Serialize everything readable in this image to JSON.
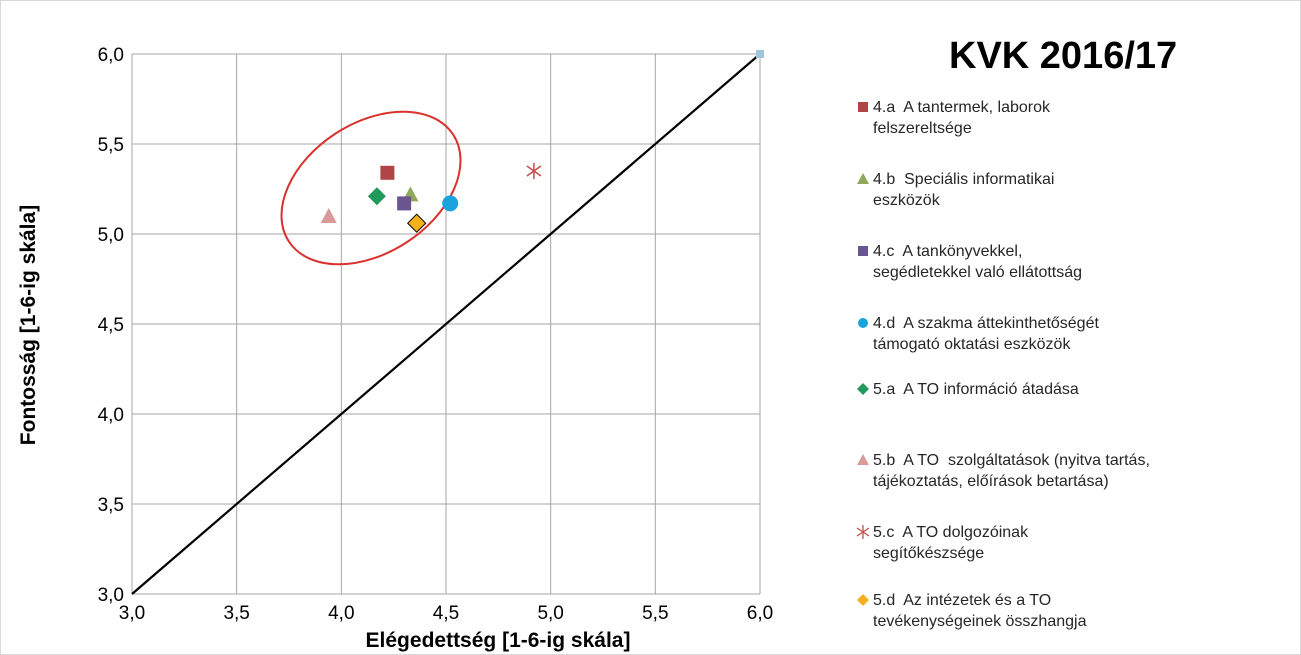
{
  "chart_data": {
    "type": "scatter",
    "title": "KVK 2016/17",
    "xlabel": "Elégedettség [1-6-ig skála]",
    "ylabel": "Fontosság [1-6-ig skála]",
    "xlim": [
      3.0,
      6.0
    ],
    "ylim": [
      3.0,
      6.0
    ],
    "xticks": [
      "3,0",
      "3,5",
      "4,0",
      "4,5",
      "5,0",
      "5,5",
      "6,0"
    ],
    "yticks": [
      "3,0",
      "3,5",
      "4,0",
      "4,5",
      "5,0",
      "5,5",
      "6,0"
    ],
    "grid": true,
    "legend_position": "right",
    "reference_line": {
      "x": [
        3.0,
        6.0
      ],
      "y": [
        3.0,
        6.0
      ],
      "color": "#000000"
    },
    "corner_point": {
      "x": 6.0,
      "y": 6.0,
      "color": "#9ec7db"
    },
    "highlight_ellipse": {
      "color": "#d9322e"
    },
    "series": [
      {
        "name": "4.a  A tantermek, laborok\nfelszereltsége",
        "x": 4.22,
        "y": 5.34,
        "marker": "square",
        "color": "#b04545"
      },
      {
        "name": "4.b  Speciális informatikai\neszközök",
        "x": 4.33,
        "y": 5.22,
        "marker": "triangle",
        "color": "#8fa85a"
      },
      {
        "name": "4.c  A tankönyvekkel,\nsegédletekkel való ellátottság",
        "x": 4.3,
        "y": 5.17,
        "marker": "square",
        "color": "#6a5591"
      },
      {
        "name": "4.d  A szakma áttekinthetőségét\ntámogató oktatási eszközök",
        "x": 4.52,
        "y": 5.17,
        "marker": "circle",
        "color": "#1aa3dd"
      },
      {
        "name": "5.a  A TO információ átadása",
        "x": 4.17,
        "y": 5.21,
        "marker": "diamond",
        "color": "#1f9a5a"
      },
      {
        "name": "5.b  A TO  szolgáltatások (nyitva tartás,\ntájékoztatás, előírások betartása)",
        "x": 3.94,
        "y": 5.1,
        "marker": "triangle",
        "color": "#d99a9a"
      },
      {
        "name": "5.c  A TO dolgozóinak\nsegítőkészsége",
        "x": 4.92,
        "y": 5.35,
        "marker": "star",
        "color": "#c0504d"
      },
      {
        "name": "5.d  Az intézetek és a TO\ntevékenységeinek összhangja",
        "x": 4.36,
        "y": 5.06,
        "marker": "diamond",
        "color": "#f2b01e"
      }
    ]
  }
}
